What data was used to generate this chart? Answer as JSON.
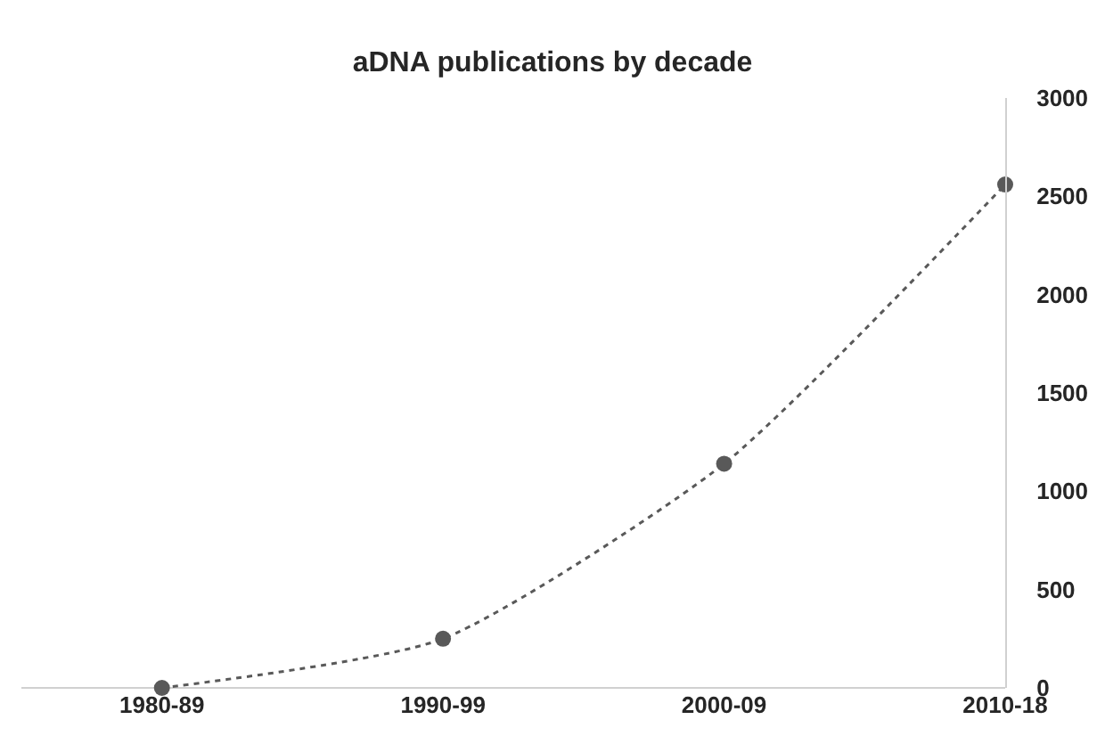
{
  "chart_data": {
    "type": "line",
    "title": "aDNA publications by decade",
    "categories": [
      "1980-89",
      "1990-99",
      "2000-09",
      "2010-18"
    ],
    "series": [
      {
        "color": "#595959",
        "values": [
          0,
          250,
          1140,
          2560
        ]
      }
    ],
    "ylim": [
      0,
      3000
    ],
    "yticks": [
      0,
      500,
      1000,
      1500,
      2000,
      2500,
      3000
    ],
    "grid": false,
    "marker": "circle",
    "line_style": "dotted"
  }
}
